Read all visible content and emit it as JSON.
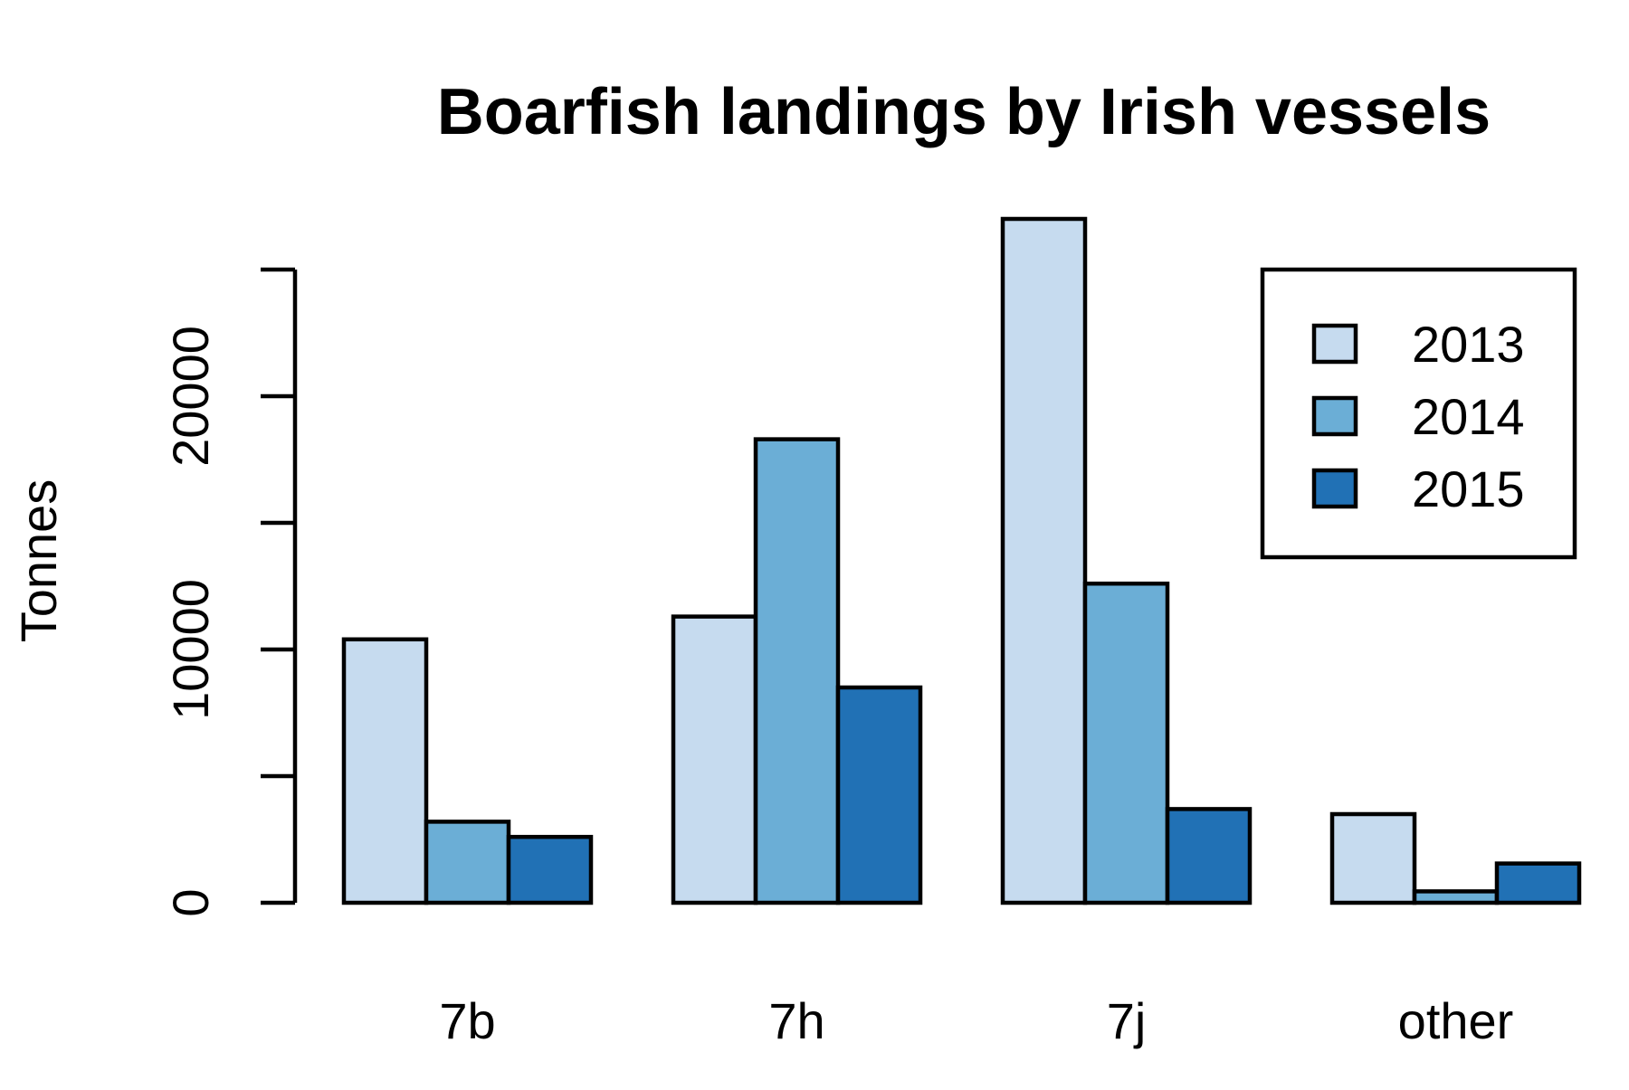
{
  "chart_data": {
    "type": "bar",
    "title": "Boarfish landings by Irish vessels",
    "xlabel": "",
    "ylabel": "Tonnes",
    "categories": [
      "7b",
      "7h",
      "7j",
      "other"
    ],
    "series": [
      {
        "name": "2013",
        "color": "#c6dbef",
        "values": [
          10400,
          11300,
          27000,
          3500
        ]
      },
      {
        "name": "2014",
        "color": "#6baed6",
        "values": [
          3200,
          18300,
          12600,
          450
        ]
      },
      {
        "name": "2015",
        "color": "#2171b5",
        "values": [
          2600,
          8500,
          3700,
          1550
        ]
      }
    ],
    "ylim": [
      0,
      25000
    ],
    "y_ticks": [
      0,
      5000,
      10000,
      15000,
      20000,
      25000
    ],
    "y_tick_labels": [
      "0",
      "",
      "10000",
      "",
      "20000",
      ""
    ],
    "grid": false,
    "legend_position": "top-right"
  }
}
